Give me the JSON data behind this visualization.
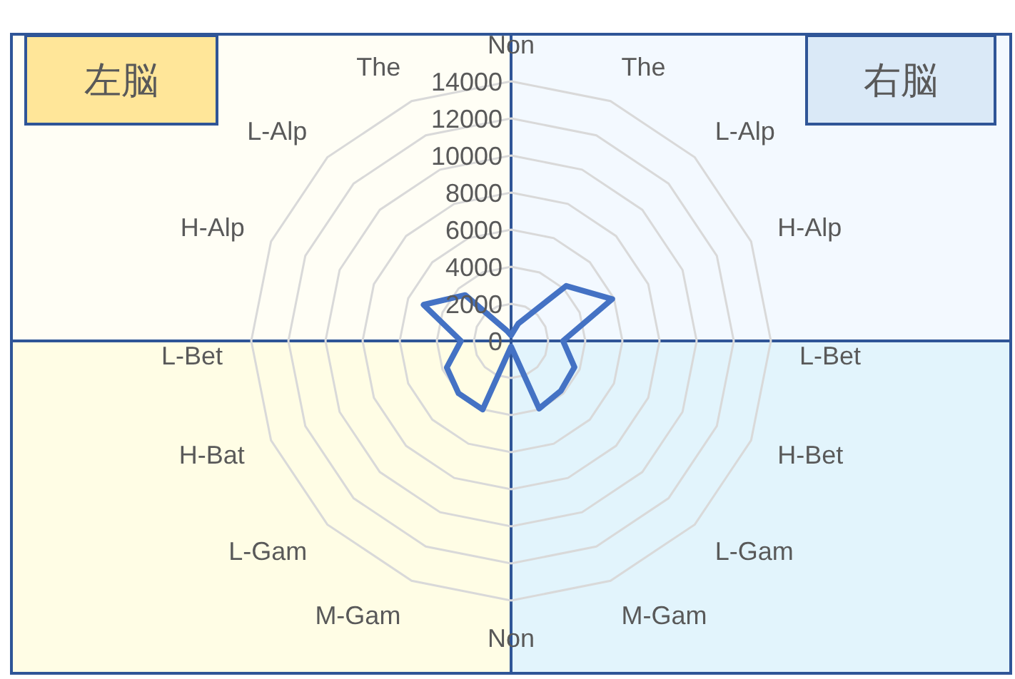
{
  "chart_data": {
    "type": "radar",
    "categories": [
      "Non",
      "The",
      "L-Alp",
      "H-Alp",
      "L-Bet",
      "H-Bet",
      "L-Gam",
      "M-Gam",
      "Non",
      "M-Gam",
      "L-Gam",
      "H-Bat",
      "L-Bet",
      "H-Alp",
      "L-Alp",
      "The"
    ],
    "series": [
      {
        "color": "#4472c4",
        "values": [
          300,
          1000,
          4200,
          5900,
          2800,
          3700,
          3800,
          3950,
          300,
          4000,
          4000,
          3750,
          2700,
          5100,
          3500,
          600
        ]
      }
    ],
    "ylim": [
      0,
      14000
    ],
    "yticks": [
      0,
      2000,
      4000,
      6000,
      8000,
      10000,
      12000,
      14000
    ],
    "grid": true,
    "marker": "none",
    "line_style": "solid",
    "annotations": [
      "左脳",
      "右脳"
    ]
  }
}
